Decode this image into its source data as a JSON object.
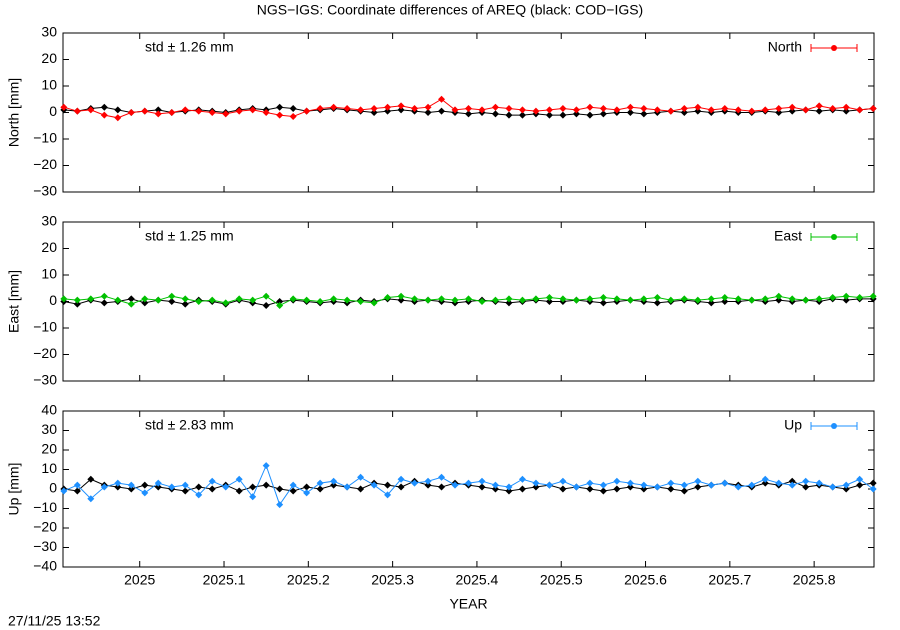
{
  "title": "NGS−IGS: Coordinate differences of AREQ (black: COD−IGS)",
  "timestamp": "27/11/25 13:52",
  "chart_data": [
    {
      "type": "line",
      "ylabel": "North [mm]",
      "annotation": "std ± 1.26 mm",
      "xlim": [
        2024.909,
        2025.871
      ],
      "xticks": [
        2025,
        2025.1,
        2025.2,
        2025.3,
        2025.4,
        2025.5,
        2025.6,
        2025.7,
        2025.8
      ],
      "ylim": [
        -30,
        30
      ],
      "yticks": [
        {
          "value": -30,
          "label": "−30"
        },
        {
          "value": -20,
          "label": "−20"
        },
        {
          "value": -10,
          "label": "−10"
        },
        0,
        10,
        20,
        30
      ],
      "x": [
        2024.91,
        2024.926,
        2024.942,
        2024.958,
        2024.974,
        2024.99,
        2025.006,
        2025.022,
        2025.038,
        2025.054,
        2025.07,
        2025.086,
        2025.102,
        2025.118,
        2025.134,
        2025.15,
        2025.166,
        2025.182,
        2025.198,
        2025.214,
        2025.23,
        2025.246,
        2025.262,
        2025.278,
        2025.294,
        2025.31,
        2025.326,
        2025.342,
        2025.358,
        2025.374,
        2025.39,
        2025.406,
        2025.422,
        2025.438,
        2025.454,
        2025.47,
        2025.486,
        2025.502,
        2025.518,
        2025.534,
        2025.55,
        2025.566,
        2025.582,
        2025.598,
        2025.614,
        2025.63,
        2025.646,
        2025.662,
        2025.678,
        2025.694,
        2025.71,
        2025.726,
        2025.742,
        2025.758,
        2025.774,
        2025.79,
        2025.806,
        2025.822,
        2025.838,
        2025.854,
        2025.87
      ],
      "series": [
        {
          "color": "#000000",
          "values": [
            1,
            0.5,
            1.5,
            2,
            1,
            0,
            0.5,
            1,
            0,
            0.5,
            1,
            0.5,
            0,
            1,
            1.5,
            1,
            2,
            1.5,
            0.5,
            1,
            1.5,
            1,
            0.5,
            0,
            0.5,
            1,
            0.5,
            0,
            0.5,
            0,
            -0.5,
            0,
            -0.5,
            -1,
            -1,
            -0.5,
            -1,
            -1,
            -0.5,
            -1,
            -0.5,
            0,
            0,
            -0.5,
            0,
            0.5,
            0,
            0.5,
            0,
            0.5,
            0,
            0,
            0.5,
            0,
            0.5,
            1,
            0.5,
            1,
            0.5,
            1,
            1.5
          ]
        },
        {
          "name": "North",
          "color": "#ff0000",
          "values": [
            2,
            0.5,
            1,
            -1,
            -2,
            0,
            0.5,
            -0.5,
            0,
            1,
            0.5,
            0,
            -0.5,
            0.5,
            1,
            0,
            -1,
            -1.5,
            0.5,
            1.5,
            2,
            1.5,
            1,
            1.5,
            2,
            2.5,
            1.5,
            2,
            5,
            1,
            1.5,
            1,
            2,
            1.5,
            1,
            0.5,
            1,
            1.5,
            1,
            2,
            1.5,
            1,
            2,
            1.5,
            1,
            0.5,
            1.5,
            2,
            1,
            1.5,
            1,
            0.5,
            1,
            1.5,
            2,
            1,
            2.5,
            1.5,
            2,
            1,
            1.5
          ]
        }
      ]
    },
    {
      "type": "line",
      "ylabel": "East [mm]",
      "annotation": "std ± 1.25 mm",
      "xlim": [
        2024.909,
        2025.871
      ],
      "xticks": [
        2025,
        2025.1,
        2025.2,
        2025.3,
        2025.4,
        2025.5,
        2025.6,
        2025.7,
        2025.8
      ],
      "ylim": [
        -30,
        30
      ],
      "yticks": [
        {
          "value": -30,
          "label": "−30"
        },
        {
          "value": -20,
          "label": "−20"
        },
        {
          "value": -10,
          "label": "−10"
        },
        0,
        10,
        20,
        30
      ],
      "x": [
        2024.91,
        2024.926,
        2024.942,
        2024.958,
        2024.974,
        2024.99,
        2025.006,
        2025.022,
        2025.038,
        2025.054,
        2025.07,
        2025.086,
        2025.102,
        2025.118,
        2025.134,
        2025.15,
        2025.166,
        2025.182,
        2025.198,
        2025.214,
        2025.23,
        2025.246,
        2025.262,
        2025.278,
        2025.294,
        2025.31,
        2025.326,
        2025.342,
        2025.358,
        2025.374,
        2025.39,
        2025.406,
        2025.422,
        2025.438,
        2025.454,
        2025.47,
        2025.486,
        2025.502,
        2025.518,
        2025.534,
        2025.55,
        2025.566,
        2025.582,
        2025.598,
        2025.614,
        2025.63,
        2025.646,
        2025.662,
        2025.678,
        2025.694,
        2025.71,
        2025.726,
        2025.742,
        2025.758,
        2025.774,
        2025.79,
        2025.806,
        2025.822,
        2025.838,
        2025.854,
        2025.87
      ],
      "series": [
        {
          "color": "#000000",
          "values": [
            0,
            -1,
            0.5,
            -0.5,
            0,
            1,
            -0.5,
            0.5,
            0,
            -1,
            0.5,
            0,
            -1,
            0.5,
            -0.5,
            -1.5,
            0,
            0.5,
            0,
            -0.5,
            0,
            -0.5,
            0.5,
            0,
            1,
            0.5,
            0,
            0.5,
            0,
            -0.5,
            0,
            0.5,
            0,
            -0.5,
            0,
            0.5,
            0,
            0,
            0.5,
            0,
            -0.5,
            0,
            0.5,
            0,
            -0.5,
            0,
            0.5,
            0,
            -0.5,
            0,
            0,
            0.5,
            0,
            0.5,
            0,
            0.5,
            0,
            1,
            0.5,
            1,
            1
          ]
        },
        {
          "name": "East",
          "color": "#00c000",
          "values": [
            1,
            0.5,
            1,
            2,
            0.5,
            -1,
            1,
            0.5,
            2,
            1,
            0,
            0.5,
            -0.5,
            1,
            0.5,
            2,
            -1.5,
            1,
            0.5,
            0,
            1,
            0.5,
            0,
            -0.5,
            1.5,
            2,
            1,
            0.5,
            1,
            0.5,
            1,
            0,
            0.5,
            1,
            0.5,
            1,
            1.5,
            1,
            0.5,
            1,
            1.5,
            1,
            0.5,
            1,
            1.5,
            0.5,
            1,
            0.5,
            1,
            1.5,
            1,
            0.5,
            1,
            2,
            1,
            0.5,
            1,
            1.5,
            2,
            1.5,
            2
          ]
        }
      ]
    },
    {
      "type": "line",
      "ylabel": "Up [mm]",
      "annotation": "std ± 2.83 mm",
      "xlabel": "YEAR",
      "xlim": [
        2024.909,
        2025.871
      ],
      "xticks": [
        2025,
        2025.1,
        2025.2,
        2025.3,
        2025.4,
        2025.5,
        2025.6,
        2025.7,
        2025.8
      ],
      "ylim": [
        -40,
        40
      ],
      "yticks": [
        {
          "value": -40,
          "label": "−40"
        },
        {
          "value": -30,
          "label": "−30"
        },
        {
          "value": -20,
          "label": "−20"
        },
        {
          "value": -10,
          "label": "−10"
        },
        0,
        10,
        20,
        30,
        40
      ],
      "x": [
        2024.91,
        2024.926,
        2024.942,
        2024.958,
        2024.974,
        2024.99,
        2025.006,
        2025.022,
        2025.038,
        2025.054,
        2025.07,
        2025.086,
        2025.102,
        2025.118,
        2025.134,
        2025.15,
        2025.166,
        2025.182,
        2025.198,
        2025.214,
        2025.23,
        2025.246,
        2025.262,
        2025.278,
        2025.294,
        2025.31,
        2025.326,
        2025.342,
        2025.358,
        2025.374,
        2025.39,
        2025.406,
        2025.422,
        2025.438,
        2025.454,
        2025.47,
        2025.486,
        2025.502,
        2025.518,
        2025.534,
        2025.55,
        2025.566,
        2025.582,
        2025.598,
        2025.614,
        2025.63,
        2025.646,
        2025.662,
        2025.678,
        2025.694,
        2025.71,
        2025.726,
        2025.742,
        2025.758,
        2025.774,
        2025.79,
        2025.806,
        2025.822,
        2025.838,
        2025.854,
        2025.87
      ],
      "series": [
        {
          "color": "#000000",
          "values": [
            0,
            -1,
            5,
            2,
            1,
            0,
            2,
            1,
            0,
            -1,
            1,
            0,
            2,
            -1,
            1,
            2,
            0,
            -1,
            1,
            0,
            2,
            1,
            0,
            3,
            2,
            1,
            4,
            2,
            1,
            3,
            2,
            1,
            0,
            -1,
            0,
            1,
            2,
            0,
            1,
            0,
            -1,
            0,
            1,
            0,
            1,
            0,
            -1,
            1,
            2,
            3,
            2,
            1,
            3,
            2,
            4,
            1,
            2,
            1,
            0,
            2,
            3
          ]
        },
        {
          "name": "Up",
          "color": "#1e90ff",
          "values": [
            -1,
            2,
            -5,
            1,
            3,
            2,
            -2,
            3,
            1,
            2,
            -3,
            4,
            1,
            5,
            -4,
            12,
            -8,
            2,
            -2,
            3,
            4,
            1,
            6,
            2,
            -3,
            5,
            3,
            4,
            6,
            2,
            3,
            4,
            2,
            1,
            5,
            3,
            2,
            4,
            1,
            3,
            2,
            4,
            3,
            2,
            1,
            3,
            2,
            4,
            2,
            3,
            1,
            2,
            5,
            3,
            2,
            4,
            3,
            1,
            2,
            5,
            0
          ]
        }
      ]
    }
  ]
}
